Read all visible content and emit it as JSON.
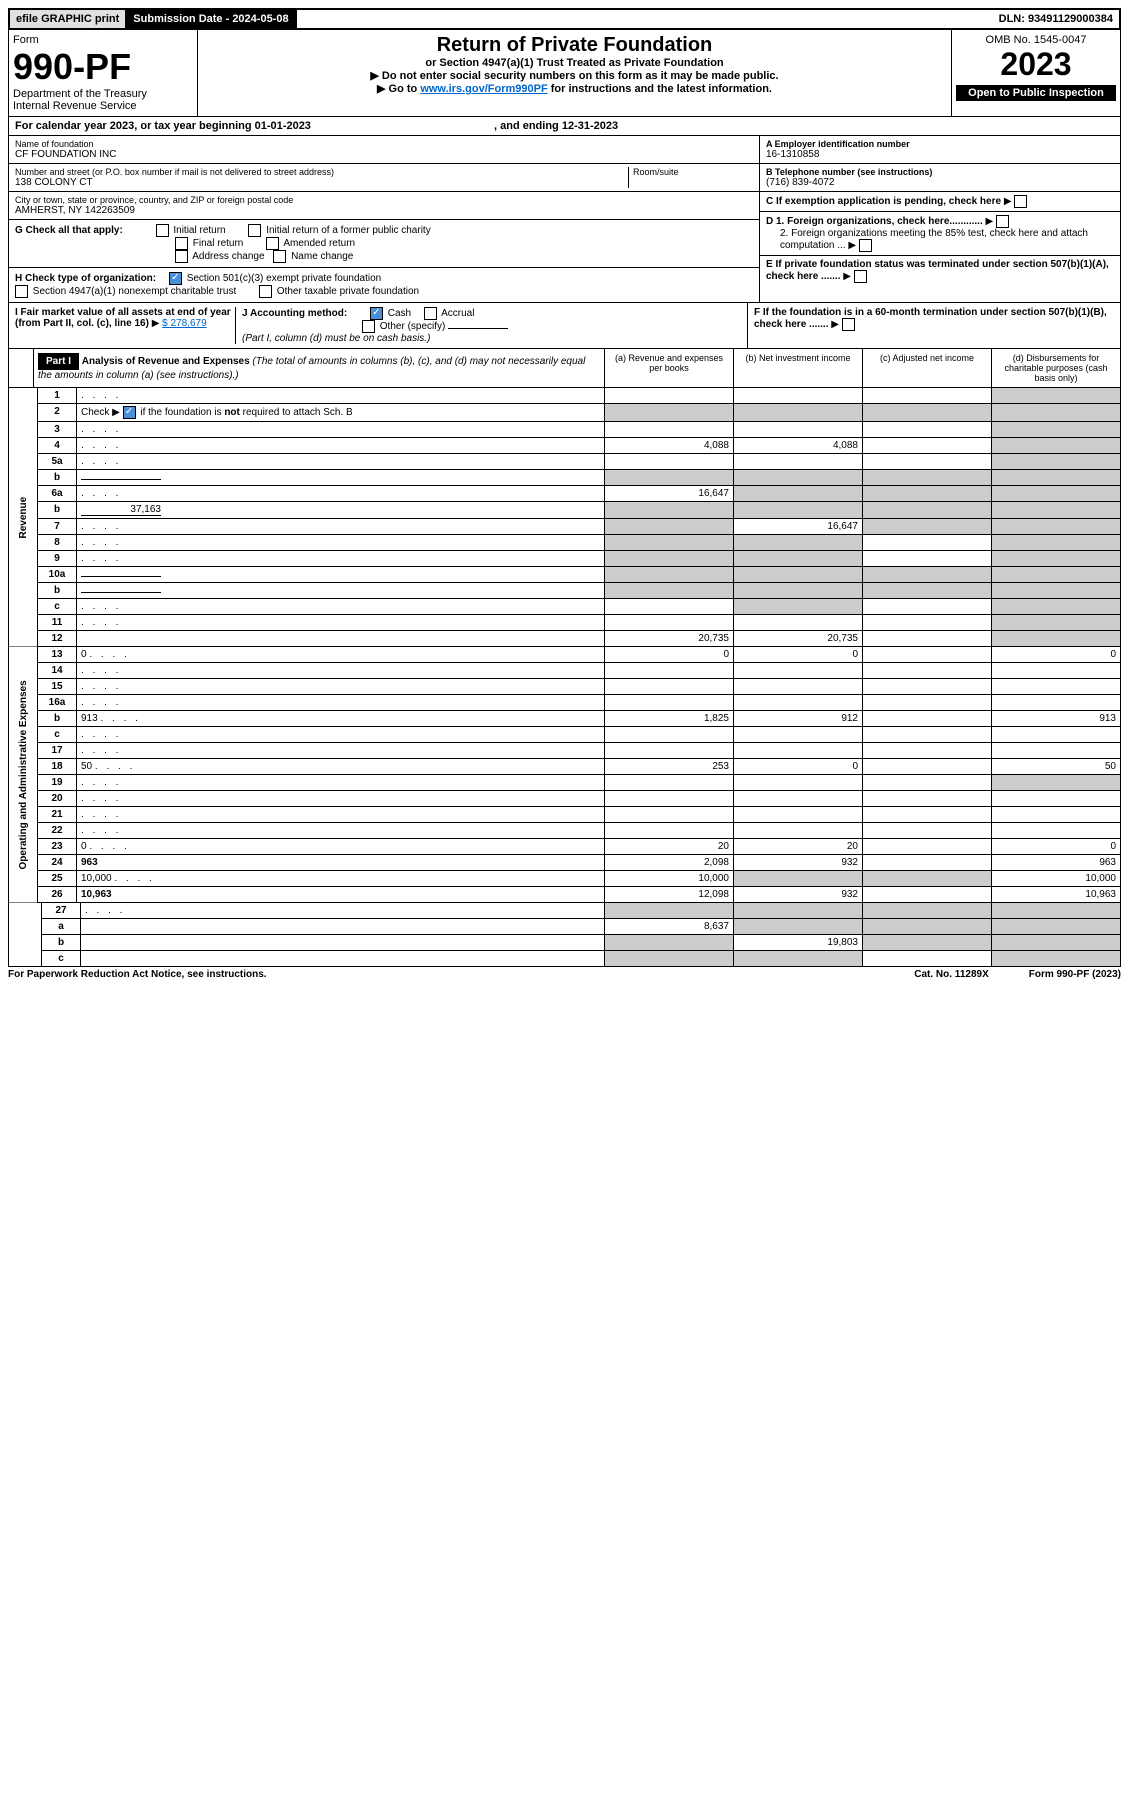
{
  "topbar": {
    "efile": "efile GRAPHIC print",
    "subdate": "Submission Date - 2024-05-08",
    "dln": "DLN: 93491129000384"
  },
  "header": {
    "form_word": "Form",
    "form_no": "990-PF",
    "dept": "Department of the Treasury",
    "irs": "Internal Revenue Service",
    "title": "Return of Private Foundation",
    "subtitle": "or Section 4947(a)(1) Trust Treated as Private Foundation",
    "note1": "Do not enter social security numbers on this form as it may be made public.",
    "note2_pre": "Go to ",
    "note2_link": "www.irs.gov/Form990PF",
    "note2_post": " for instructions and the latest information.",
    "omb": "OMB No. 1545-0047",
    "year": "2023",
    "open": "Open to Public Inspection"
  },
  "calyear": {
    "text_pre": "For calendar year 2023, or tax year beginning ",
    "begin": "01-01-2023",
    "mid": " , and ending ",
    "end": "12-31-2023"
  },
  "org": {
    "name_label": "Name of foundation",
    "name": "CF FOUNDATION INC",
    "addr_label": "Number and street (or P.O. box number if mail is not delivered to street address)",
    "addr": "138 COLONY CT",
    "room_label": "Room/suite",
    "city_label": "City or town, state or province, country, and ZIP or foreign postal code",
    "city": "AMHERST, NY  142263509",
    "a_label": "A Employer identification number",
    "a_val": "16-1310858",
    "b_label": "B Telephone number (see instructions)",
    "b_val": "(716) 839-4072",
    "c_label": "C If exemption application is pending, check here",
    "d1": "D 1. Foreign organizations, check here............",
    "d2": "2. Foreign organizations meeting the 85% test, check here and attach computation ...",
    "e": "E  If private foundation status was terminated under section 507(b)(1)(A), check here .......",
    "f": "F  If the foundation is in a 60-month termination under section 507(b)(1)(B), check here ......."
  },
  "g": {
    "label": "G Check all that apply:",
    "opts": [
      "Initial return",
      "Initial return of a former public charity",
      "Final return",
      "Amended return",
      "Address change",
      "Name change"
    ]
  },
  "h": {
    "label": "H Check type of organization:",
    "opt1": "Section 501(c)(3) exempt private foundation",
    "opt2": "Section 4947(a)(1) nonexempt charitable trust",
    "opt3": "Other taxable private foundation"
  },
  "i": {
    "label": "I Fair market value of all assets at end of year (from Part II, col. (c), line 16)",
    "val": "$  278,679"
  },
  "j": {
    "label": "J Accounting method:",
    "cash": "Cash",
    "accrual": "Accrual",
    "other": "Other (specify)",
    "note": "(Part I, column (d) must be on cash basis.)"
  },
  "part1": {
    "label": "Part I",
    "title": "Analysis of Revenue and Expenses",
    "title_note": "(The total of amounts in columns (b), (c), and (d) may not necessarily equal the amounts in column (a) (see instructions).)",
    "col_a": "(a) Revenue and expenses per books",
    "col_b": "(b) Net investment income",
    "col_c": "(c) Adjusted net income",
    "col_d": "(d) Disbursements for charitable purposes (cash basis only)"
  },
  "sections": {
    "revenue": "Revenue",
    "opex": "Operating and Administrative Expenses"
  },
  "lines": [
    {
      "n": "1",
      "d": "",
      "a": "",
      "b": "",
      "c": "",
      "sh": [
        "d"
      ]
    },
    {
      "n": "2",
      "d": "",
      "a": "",
      "b": "",
      "c": "",
      "sh": [
        "a",
        "b",
        "c",
        "d"
      ],
      "checked": true
    },
    {
      "n": "3",
      "d": "",
      "a": "",
      "b": "",
      "c": "",
      "sh": [
        "d"
      ]
    },
    {
      "n": "4",
      "d": "",
      "a": "4,088",
      "b": "4,088",
      "c": "",
      "sh": [
        "d"
      ]
    },
    {
      "n": "5a",
      "d": "",
      "a": "",
      "b": "",
      "c": "",
      "sh": [
        "d"
      ]
    },
    {
      "n": "b",
      "d": "",
      "a": "",
      "b": "",
      "c": "",
      "sh": [
        "a",
        "b",
        "c",
        "d"
      ],
      "inline": true
    },
    {
      "n": "6a",
      "d": "",
      "a": "16,647",
      "b": "",
      "c": "",
      "sh": [
        "b",
        "c",
        "d"
      ]
    },
    {
      "n": "b",
      "d": "",
      "a": "",
      "b": "",
      "c": "",
      "sh": [
        "a",
        "b",
        "c",
        "d"
      ],
      "inline": true,
      "inline_val": "37,163"
    },
    {
      "n": "7",
      "d": "",
      "a": "",
      "b": "16,647",
      "c": "",
      "sh": [
        "a",
        "c",
        "d"
      ]
    },
    {
      "n": "8",
      "d": "",
      "a": "",
      "b": "",
      "c": "",
      "sh": [
        "a",
        "b",
        "d"
      ]
    },
    {
      "n": "9",
      "d": "",
      "a": "",
      "b": "",
      "c": "",
      "sh": [
        "a",
        "b",
        "d"
      ]
    },
    {
      "n": "10a",
      "d": "",
      "a": "",
      "b": "",
      "c": "",
      "sh": [
        "a",
        "b",
        "c",
        "d"
      ],
      "inline": true
    },
    {
      "n": "b",
      "d": "",
      "a": "",
      "b": "",
      "c": "",
      "sh": [
        "a",
        "b",
        "c",
        "d"
      ],
      "inline": true
    },
    {
      "n": "c",
      "d": "",
      "a": "",
      "b": "",
      "c": "",
      "sh": [
        "b",
        "d"
      ]
    },
    {
      "n": "11",
      "d": "",
      "a": "",
      "b": "",
      "c": "",
      "sh": [
        "d"
      ]
    },
    {
      "n": "12",
      "d": "",
      "a": "20,735",
      "b": "20,735",
      "c": "",
      "sh": [
        "d"
      ],
      "bold": true
    }
  ],
  "exp_lines": [
    {
      "n": "13",
      "d": "0",
      "a": "0",
      "b": "0",
      "c": ""
    },
    {
      "n": "14",
      "d": "",
      "a": "",
      "b": "",
      "c": ""
    },
    {
      "n": "15",
      "d": "",
      "a": "",
      "b": "",
      "c": ""
    },
    {
      "n": "16a",
      "d": "",
      "a": "",
      "b": "",
      "c": ""
    },
    {
      "n": "b",
      "d": "913",
      "a": "1,825",
      "b": "912",
      "c": ""
    },
    {
      "n": "c",
      "d": "",
      "a": "",
      "b": "",
      "c": ""
    },
    {
      "n": "17",
      "d": "",
      "a": "",
      "b": "",
      "c": ""
    },
    {
      "n": "18",
      "d": "50",
      "a": "253",
      "b": "0",
      "c": ""
    },
    {
      "n": "19",
      "d": "",
      "a": "",
      "b": "",
      "c": "",
      "sh": [
        "d"
      ]
    },
    {
      "n": "20",
      "d": "",
      "a": "",
      "b": "",
      "c": ""
    },
    {
      "n": "21",
      "d": "",
      "a": "",
      "b": "",
      "c": ""
    },
    {
      "n": "22",
      "d": "",
      "a": "",
      "b": "",
      "c": ""
    },
    {
      "n": "23",
      "d": "0",
      "a": "20",
      "b": "20",
      "c": ""
    },
    {
      "n": "24",
      "d": "963",
      "a": "2,098",
      "b": "932",
      "c": "",
      "bold": true
    },
    {
      "n": "25",
      "d": "10,000",
      "a": "10,000",
      "b": "",
      "c": "",
      "sh": [
        "b",
        "c"
      ]
    },
    {
      "n": "26",
      "d": "10,963",
      "a": "12,098",
      "b": "932",
      "c": "",
      "bold": true
    }
  ],
  "line27": [
    {
      "n": "27",
      "d": "",
      "a": "",
      "b": "",
      "c": "",
      "sh": [
        "a",
        "b",
        "c",
        "d"
      ]
    },
    {
      "n": "a",
      "d": "",
      "a": "8,637",
      "b": "",
      "c": "",
      "sh": [
        "b",
        "c",
        "d"
      ],
      "bold": true
    },
    {
      "n": "b",
      "d": "",
      "a": "",
      "b": "19,803",
      "c": "",
      "sh": [
        "a",
        "c",
        "d"
      ],
      "bold": true
    },
    {
      "n": "c",
      "d": "",
      "a": "",
      "b": "",
      "c": "",
      "sh": [
        "a",
        "b",
        "d"
      ],
      "bold": true
    }
  ],
  "footer": {
    "left": "For Paperwork Reduction Act Notice, see instructions.",
    "mid": "Cat. No. 11289X",
    "right": "Form 990-PF (2023)"
  }
}
